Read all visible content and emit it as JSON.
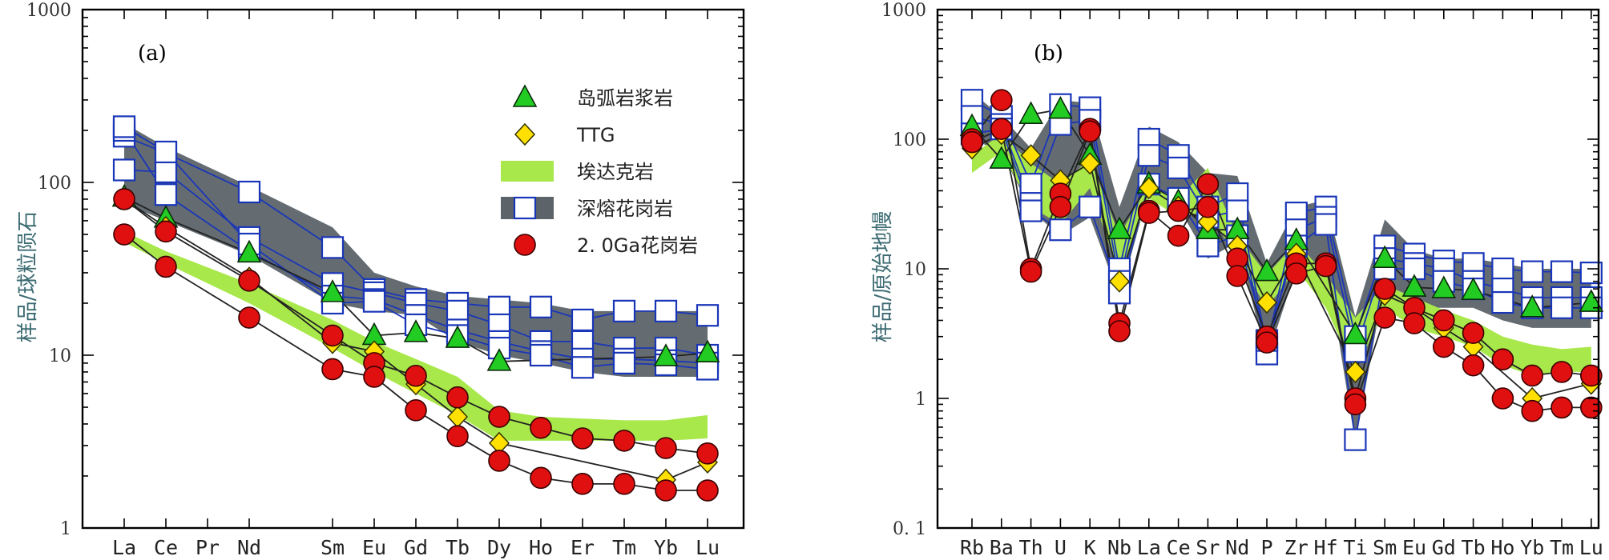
{
  "chart_data": [
    {
      "type": "line",
      "panel_label": "(a)",
      "yscale": "log",
      "ylabel": "样品/球粒陨石",
      "ylim": [
        1,
        1000
      ],
      "yticks": [
        "1000",
        "100",
        "10",
        "1"
      ],
      "categories": [
        "La",
        "Ce",
        "Pr",
        "Nd",
        "Sm",
        "Eu",
        "Gd",
        "Tb",
        "Dy",
        "Ho",
        "Er",
        "Tm",
        "Yb",
        "Lu"
      ],
      "legend": [
        {
          "key": "arc",
          "label": "岛弧岩浆岩",
          "marker": "triangle",
          "color": "#22cc22"
        },
        {
          "key": "ttg",
          "label": "TTG",
          "marker": "diamond",
          "color": "#ffe000"
        },
        {
          "key": "adakite",
          "label": "埃达克岩",
          "marker": "band",
          "color": "#a8e84a"
        },
        {
          "key": "anatectic",
          "label": "深熔花岗岩",
          "marker": "square",
          "color": "#ffffff"
        },
        {
          "key": "granite20",
          "label": "2. 0Ga花岗岩",
          "marker": "circle",
          "color": "#e01010"
        }
      ],
      "series": [
        {
          "name": "深熔花岗岩 envelope",
          "kind": "gray_band",
          "upper": [
            220,
            160,
            null,
            95,
            55,
            30,
            25,
            22,
            21,
            20,
            18,
            18,
            18,
            18
          ],
          "lower": [
            75,
            60,
            null,
            38,
            20,
            18,
            17,
            12,
            10,
            9,
            8,
            7.5,
            7.5,
            7.5
          ]
        },
        {
          "name": "埃达克岩",
          "kind": "green_band",
          "upper": [
            52,
            40,
            null,
            26,
            16,
            12,
            9.5,
            7.5,
            4.8,
            4.4,
            4.3,
            4.2,
            4.2,
            4.5
          ],
          "lower": [
            45,
            34,
            null,
            20,
            11,
            8,
            6,
            4.5,
            3.2,
            3.2,
            3.2,
            3.2,
            3.2,
            3.3
          ]
        },
        {
          "name": "深熔花岗岩 1",
          "marker": "square",
          "values": [
            185,
            148,
            null,
            88,
            42,
            24,
            21,
            20,
            19,
            19,
            16,
            18,
            18,
            17
          ]
        },
        {
          "name": "深熔花岗岩 2",
          "marker": "square",
          "values": [
            118,
            115,
            null,
            48,
            26,
            23,
            20,
            18,
            15,
            12,
            12,
            11,
            11,
            10
          ]
        },
        {
          "name": "深熔花岗岩 3",
          "marker": "square",
          "values": [
            200,
            85,
            null,
            40,
            22,
            21,
            17,
            14,
            12,
            10.5,
            9.5,
            9.5,
            9.3,
            9
          ]
        },
        {
          "name": "深熔花岗岩 4",
          "marker": "square",
          "values": [
            210,
            150,
            null,
            44,
            20,
            20.5,
            15,
            13,
            11,
            10,
            8.5,
            9,
            8.8,
            8.3
          ]
        },
        {
          "name": "岛弧岩浆岩",
          "marker": "triangle",
          "values": [
            82,
            62,
            null,
            39,
            23,
            13,
            13.5,
            12.5,
            9.2,
            null,
            null,
            null,
            9.8,
            10.3
          ]
        },
        {
          "name": "TTG 1",
          "marker": "diamond",
          "values": [
            80,
            55,
            null,
            28,
            11.8,
            10.5,
            6.8,
            4.4,
            3.1,
            null,
            null,
            null,
            1.9,
            2.4
          ]
        },
        {
          "name": "2.0Ga花岗岩 1",
          "marker": "circle",
          "values": [
            80,
            52,
            null,
            27,
            13,
            9,
            7.6,
            5.7,
            4.4,
            3.8,
            3.3,
            3.2,
            2.9,
            2.7
          ]
        },
        {
          "name": "2.0Ga花岗岩 2",
          "marker": "circle",
          "values": [
            50,
            32.5,
            null,
            16.5,
            8.3,
            7.5,
            4.8,
            3.4,
            2.45,
            1.95,
            1.8,
            1.8,
            1.65,
            1.65
          ]
        }
      ]
    },
    {
      "type": "line",
      "panel_label": "(b)",
      "yscale": "log",
      "ylabel": "样品/原始地幔",
      "ylim": [
        0.1,
        1000
      ],
      "yticks": [
        "1000",
        "100",
        "10",
        "1",
        "0. 1"
      ],
      "categories": [
        "Rb",
        "Ba",
        "Th",
        "U",
        "K",
        "Nb",
        "La",
        "Ce",
        "Sr",
        "Nd",
        "P",
        "Zr",
        "Hf",
        "Ti",
        "Sm",
        "Eu",
        "Gd",
        "Tb",
        "Ho",
        "Yb",
        "Tm",
        "Lu"
      ],
      "series": [
        {
          "name": "深熔花岗岩 envelope",
          "kind": "gray_band",
          "upper": [
            230,
            150,
            85,
            200,
            190,
            30,
            125,
            95,
            55,
            52,
            11,
            30,
            34,
            4.3,
            24,
            14,
            12,
            12,
            11,
            10,
            10,
            10
          ],
          "lower": [
            100,
            80,
            28,
            18,
            25,
            6,
            40,
            30,
            12,
            16,
            2,
            10,
            12,
            0.45,
            8,
            5,
            5,
            5,
            4,
            3.5,
            3.5,
            3.5
          ]
        },
        {
          "name": "埃达克岩",
          "kind": "green_band",
          "upper": [
            75,
            110,
            65,
            45,
            70,
            18,
            45,
            35,
            60,
            18,
            9,
            16,
            9,
            4.2,
            7.5,
            6,
            4.8,
            4,
            3,
            2.6,
            2.4,
            2.5
          ],
          "lower": [
            55,
            80,
            30,
            22,
            42,
            9,
            35,
            25,
            28,
            12,
            5,
            10,
            5,
            1.6,
            5,
            3.5,
            3,
            2.5,
            1.8,
            1.5,
            1.6,
            1.6
          ]
        },
        {
          "name": "深熔花岗岩 1",
          "marker": "square",
          "values": [
            200,
            150,
            45,
            185,
            175,
            10,
            100,
            75,
            30,
            38,
            2.5,
            27,
            30,
            3,
            15,
            13,
            11.5,
            11,
            10,
            9.5,
            9.5,
            9.3
          ]
        },
        {
          "name": "深熔花岗岩 2",
          "marker": "square",
          "values": [
            150,
            130,
            32,
            130,
            140,
            8,
            75,
            60,
            25,
            28,
            2.2,
            20,
            25,
            2.3,
            12,
            11,
            10,
            8,
            7,
            6,
            6,
            6
          ]
        },
        {
          "name": "深熔花岗岩 3",
          "marker": "square",
          "values": [
            110,
            120,
            28,
            20,
            30,
            6.5,
            45,
            35,
            15,
            18,
            2.8,
            15,
            22,
            0.48,
            10,
            10,
            8,
            7,
            5.5,
            5,
            5,
            5
          ]
        },
        {
          "name": "岛弧岩浆岩",
          "marker": "triangle",
          "values": [
            125,
            70,
            155,
            170,
            75,
            20,
            45,
            33,
            20,
            20,
            9.5,
            16.5,
            null,
            3.1,
            12,
            7.2,
            7,
            6.8,
            null,
            5,
            null,
            5.5
          ]
        },
        {
          "name": "TTG 1",
          "marker": "diamond",
          "values": [
            85,
            110,
            75,
            48,
            65,
            8,
            42,
            30,
            23,
            15,
            5.5,
            13,
            null,
            1.6,
            6.3,
            5,
            3.5,
            2.5,
            null,
            1,
            null,
            1.3
          ]
        },
        {
          "name": "2.0Ga花岗岩 1",
          "marker": "circle",
          "values": [
            100,
            200,
            10,
            38,
            120,
            3.8,
            28,
            18,
            45,
            12,
            3,
            11,
            11,
            1,
            7,
            5,
            4,
            3.2,
            2,
            1.5,
            1.6,
            1.5
          ]
        },
        {
          "name": "2.0Ga花岗岩 2",
          "marker": "circle",
          "values": [
            95,
            120,
            9.5,
            30,
            115,
            3.3,
            27,
            28,
            30,
            8.8,
            2.7,
            9.2,
            10.5,
            0.9,
            4.2,
            3.8,
            2.5,
            1.8,
            1,
            0.8,
            0.85,
            0.85
          ]
        }
      ]
    }
  ]
}
